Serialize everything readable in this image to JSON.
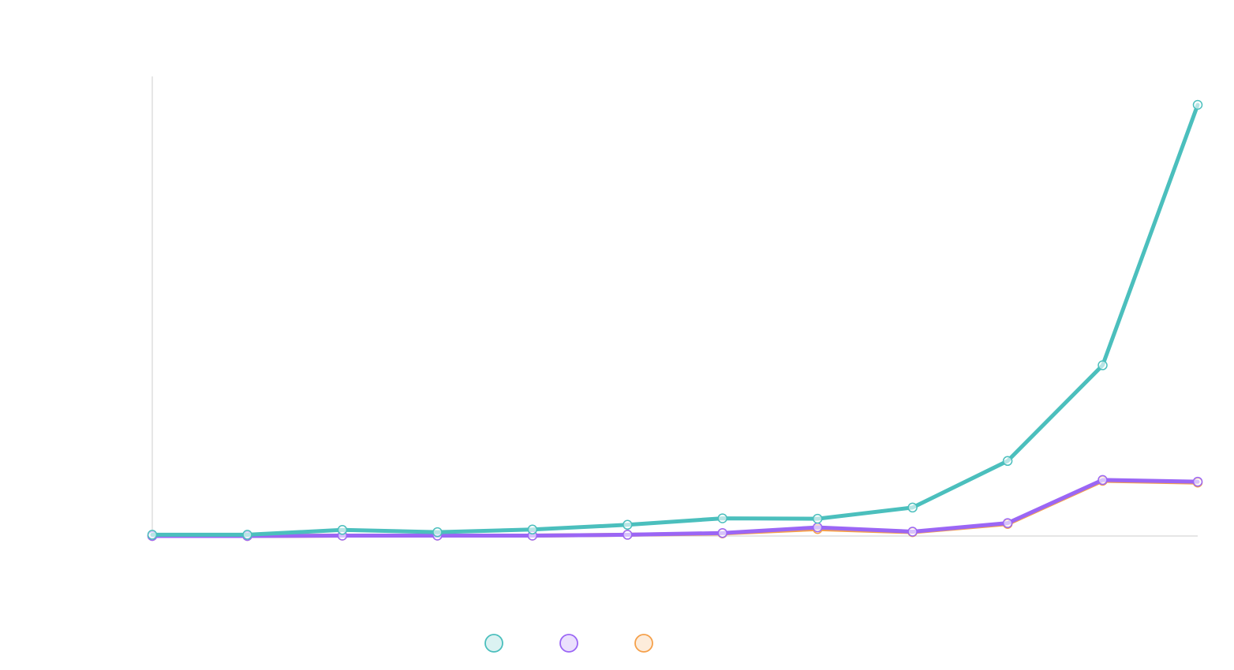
{
  "chart_data": {
    "type": "line",
    "title": "",
    "xlabel": "",
    "ylabel": "",
    "x": [
      1,
      2,
      3,
      4,
      5,
      6,
      7,
      8,
      9,
      10,
      11,
      12
    ],
    "ylim": [
      0,
      1000
    ],
    "grid": false,
    "legend_placement": "bottom-center",
    "series": [
      {
        "name": "",
        "color": "#4bbfbd",
        "values": [
          3,
          3,
          14,
          9,
          15,
          26,
          41,
          40,
          66,
          174,
          396,
          1000
        ]
      },
      {
        "name": "",
        "color": "#9b66f5",
        "values": [
          0,
          0,
          1,
          1,
          1,
          3,
          7,
          20,
          10,
          30,
          130,
          126
        ]
      },
      {
        "name": "",
        "color": "#f5a04a",
        "values": [
          0,
          0,
          1,
          1,
          1,
          3,
          6,
          16,
          9,
          28,
          128,
          124
        ]
      }
    ]
  }
}
